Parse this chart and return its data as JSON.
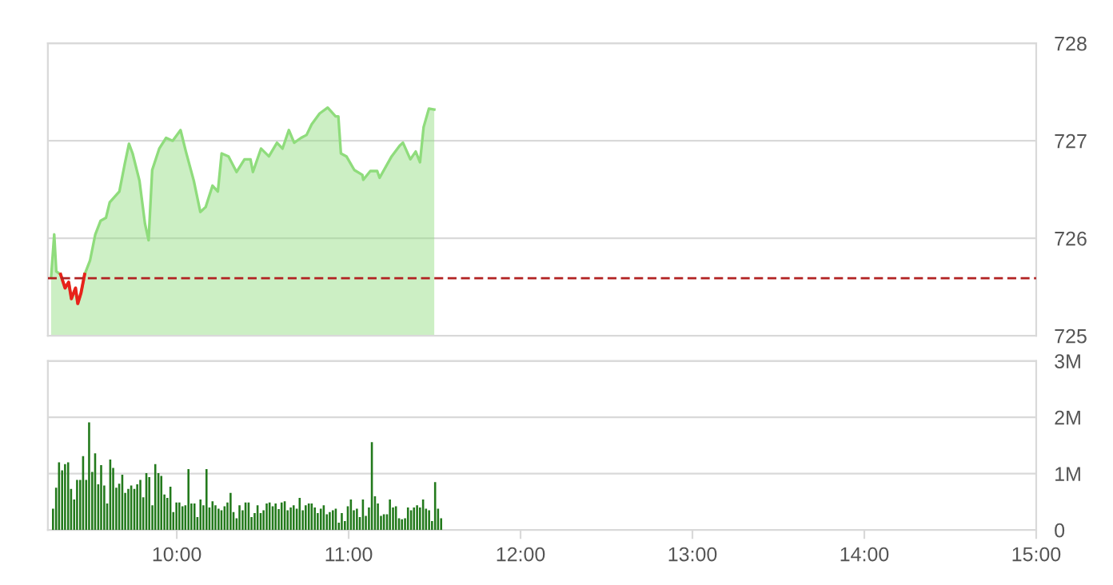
{
  "chart_data": [
    {
      "type": "area",
      "xlim": [
        9.25,
        15.0
      ],
      "ylim": [
        725,
        728
      ],
      "yticks": [
        725,
        726,
        727,
        728
      ],
      "tick_labels": "y",
      "grid": "y",
      "series": [
        {
          "color": "#8fdc7c",
          "x": [
            9.269,
            9.287,
            9.299,
            9.324,
            9.35,
            9.371,
            9.387,
            9.411,
            9.424,
            9.443,
            9.464,
            9.495,
            9.526,
            9.557,
            9.588,
            9.61,
            9.666,
            9.697,
            9.722,
            9.743,
            9.783,
            9.815,
            9.836,
            9.857,
            9.898,
            9.938,
            9.976,
            10.022,
            10.053,
            10.099,
            10.137,
            10.168,
            10.208,
            10.239,
            10.261,
            10.301,
            10.348,
            10.394,
            10.429,
            10.443,
            10.49,
            10.536,
            10.583,
            10.615,
            10.652,
            10.683,
            10.723,
            10.755,
            10.785,
            10.831,
            10.878,
            10.924,
            10.94,
            10.955,
            10.987,
            11.033,
            11.08,
            11.085,
            11.126,
            11.166,
            11.18,
            11.25,
            11.297,
            11.316,
            11.359,
            11.39,
            11.415,
            11.436,
            11.467,
            11.498
          ],
          "values": [
            725.6,
            726.04,
            725.66,
            725.63,
            725.49,
            725.55,
            725.38,
            725.49,
            725.33,
            725.44,
            725.63,
            725.77,
            726.04,
            726.18,
            726.21,
            726.37,
            726.48,
            726.76,
            726.97,
            726.87,
            726.59,
            726.15,
            725.98,
            726.7,
            726.92,
            727.03,
            727.0,
            727.11,
            726.89,
            726.59,
            726.27,
            726.32,
            726.54,
            726.48,
            726.87,
            726.84,
            726.68,
            726.81,
            726.81,
            726.68,
            726.92,
            726.84,
            726.98,
            726.92,
            727.11,
            726.98,
            727.03,
            727.06,
            727.17,
            727.28,
            727.34,
            727.25,
            727.25,
            726.87,
            726.84,
            726.7,
            726.65,
            726.6,
            726.69,
            726.69,
            726.62,
            726.84,
            726.95,
            726.98,
            726.81,
            726.89,
            726.78,
            727.14,
            727.33,
            727.32
          ]
        },
        {
          "type": "line",
          "color": "#e8221b",
          "x": [
            9.324,
            9.35,
            9.371,
            9.387,
            9.411,
            9.424,
            9.443,
            9.464
          ],
          "values": [
            725.63,
            725.49,
            725.55,
            725.38,
            725.49,
            725.33,
            725.44,
            725.63
          ]
        }
      ],
      "ref_lines": [
        {
          "axis": "y",
          "value": 725.59,
          "label": null,
          "color": "#b22222",
          "line_style": "dashed"
        }
      ]
    },
    {
      "type": "bar",
      "xlim": [
        9.25,
        15.0
      ],
      "xticks": [
        {
          "value": 10,
          "label": "10:00"
        },
        {
          "value": 11,
          "label": "11:00"
        },
        {
          "value": 12,
          "label": "12:00"
        },
        {
          "value": 13,
          "label": "13:00"
        },
        {
          "value": 14,
          "label": "14:00"
        },
        {
          "value": 15,
          "label": "15:00"
        }
      ],
      "ylim": [
        0,
        3
      ],
      "yticks": [
        {
          "value": 0,
          "label": "0"
        },
        {
          "value": 1,
          "label": "1M"
        },
        {
          "value": 2,
          "label": "2M"
        },
        {
          "value": 3,
          "label": "3M"
        }
      ],
      "grid": "y",
      "series": [
        {
          "color": "#237a1c",
          "x": [
            9.28,
            9.298,
            9.315,
            9.333,
            9.35,
            9.368,
            9.385,
            9.403,
            9.42,
            9.438,
            9.455,
            9.473,
            9.49,
            9.508,
            9.525,
            9.543,
            9.56,
            9.578,
            9.595,
            9.613,
            9.63,
            9.648,
            9.665,
            9.683,
            9.7,
            9.718,
            9.735,
            9.753,
            9.77,
            9.788,
            9.805,
            9.823,
            9.84,
            9.858,
            9.875,
            9.893,
            9.91,
            9.928,
            9.945,
            9.963,
            9.98,
            9.998,
            10.015,
            10.033,
            10.05,
            10.068,
            10.085,
            10.103,
            10.12,
            10.138,
            10.155,
            10.173,
            10.19,
            10.208,
            10.225,
            10.243,
            10.26,
            10.278,
            10.295,
            10.313,
            10.33,
            10.348,
            10.365,
            10.383,
            10.4,
            10.418,
            10.435,
            10.453,
            10.47,
            10.488,
            10.505,
            10.523,
            10.54,
            10.558,
            10.575,
            10.593,
            10.61,
            10.628,
            10.645,
            10.663,
            10.68,
            10.698,
            10.715,
            10.733,
            10.75,
            10.768,
            10.785,
            10.803,
            10.82,
            10.838,
            10.855,
            10.873,
            10.89,
            10.908,
            10.925,
            10.943,
            10.96,
            10.978,
            10.995,
            11.013,
            11.03,
            11.048,
            11.065,
            11.083,
            11.1,
            11.118,
            11.135,
            11.153,
            11.17,
            11.188,
            11.205,
            11.223,
            11.24,
            11.258,
            11.275,
            11.293,
            11.31,
            11.328,
            11.345,
            11.363,
            11.38,
            11.398,
            11.415,
            11.433,
            11.45,
            11.468,
            11.485,
            11.503,
            11.52,
            11.538
          ],
          "values": [
            0.38,
            0.75,
            1.2,
            1.06,
            1.17,
            1.2,
            0.73,
            0.54,
            0.89,
            0.89,
            1.31,
            0.89,
            1.91,
            1.03,
            1.36,
            0.81,
            1.15,
            0.79,
            0.47,
            1.25,
            1.1,
            0.75,
            0.82,
            0.98,
            0.66,
            0.73,
            0.79,
            0.73,
            0.81,
            0.89,
            0.58,
            1.01,
            0.94,
            0.44,
            1.17,
            1.01,
            0.96,
            0.63,
            0.57,
            0.77,
            0.32,
            0.49,
            0.49,
            0.42,
            0.44,
            1.08,
            0.47,
            0.47,
            0.23,
            0.54,
            0.44,
            1.08,
            0.4,
            0.51,
            0.44,
            0.38,
            0.35,
            0.42,
            0.49,
            0.66,
            0.32,
            0.21,
            0.44,
            0.35,
            0.49,
            0.49,
            0.23,
            0.3,
            0.44,
            0.3,
            0.35,
            0.47,
            0.49,
            0.42,
            0.47,
            0.37,
            0.49,
            0.51,
            0.35,
            0.4,
            0.44,
            0.38,
            0.57,
            0.35,
            0.44,
            0.47,
            0.47,
            0.4,
            0.3,
            0.38,
            0.44,
            0.28,
            0.32,
            0.35,
            0.38,
            0.13,
            0.3,
            0.16,
            0.42,
            0.54,
            0.35,
            0.38,
            0.23,
            0.54,
            0.25,
            0.4,
            1.56,
            0.6,
            0.47,
            0.25,
            0.28,
            0.28,
            0.54,
            0.4,
            0.42,
            0.21,
            0.19,
            0.21,
            0.4,
            0.35,
            0.4,
            0.44,
            0.4,
            0.54,
            0.38,
            0.35,
            0.16,
            0.85,
            0.38,
            0.21
          ]
        }
      ]
    }
  ]
}
